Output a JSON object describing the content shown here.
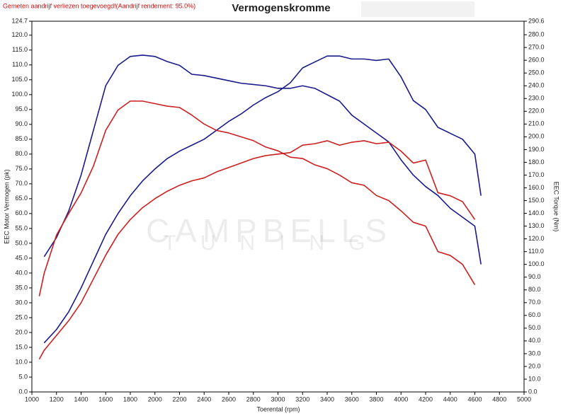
{
  "chart_data": {
    "type": "line",
    "note": "Gemeten aandrijf verliezen toegevoegd!(Aandrijf rendement: 95.0%)",
    "title": "Vermogenskromme",
    "x_label": "Toerental (rpm)",
    "y_label": "EEC Motor Vermogen (pk)",
    "y2_label": "EEC Torque (Nm)",
    "watermark": [
      "CAMPBELLS",
      "TUNING"
    ],
    "grid": false,
    "xlim": [
      1000,
      5000
    ],
    "xticks": [
      1000,
      1200,
      1400,
      1600,
      1800,
      2000,
      2200,
      2400,
      2600,
      2800,
      3000,
      3200,
      3400,
      3600,
      3800,
      4000,
      4200,
      4400,
      4600,
      4800,
      5000
    ],
    "ylim": [
      0,
      124.7
    ],
    "yticks": [
      {
        "value": 0,
        "label": "0.0"
      },
      {
        "value": 5,
        "label": "5.0"
      },
      {
        "value": 10,
        "label": "10.0"
      },
      {
        "value": 15,
        "label": "15.0"
      },
      {
        "value": 20,
        "label": "20.0"
      },
      {
        "value": 25,
        "label": "25.0"
      },
      {
        "value": 30,
        "label": "30.0"
      },
      {
        "value": 35,
        "label": "35.0"
      },
      {
        "value": 40,
        "label": "40.0"
      },
      {
        "value": 45,
        "label": "45.0"
      },
      {
        "value": 50,
        "label": "50.0"
      },
      {
        "value": 55,
        "label": "55.0"
      },
      {
        "value": 60,
        "label": "60.0"
      },
      {
        "value": 65,
        "label": "65.0"
      },
      {
        "value": 70,
        "label": "70.0"
      },
      {
        "value": 75,
        "label": "75.0"
      },
      {
        "value": 80,
        "label": "80.0"
      },
      {
        "value": 85,
        "label": "85.0"
      },
      {
        "value": 90,
        "label": "90.0"
      },
      {
        "value": 95,
        "label": "95.0"
      },
      {
        "value": 100,
        "label": "100.0"
      },
      {
        "value": 105,
        "label": "105.0"
      },
      {
        "value": 110,
        "label": "110.0"
      },
      {
        "value": 115,
        "label": "115.0"
      },
      {
        "value": 120,
        "label": "120.0"
      },
      124.7
    ],
    "y2lim": [
      0,
      290.6
    ],
    "y2ticks": [
      {
        "value": 0,
        "label": "0.0"
      },
      {
        "value": 10,
        "label": "10.0"
      },
      {
        "value": 20,
        "label": "20.0"
      },
      {
        "value": 30,
        "label": "30.0"
      },
      {
        "value": 40,
        "label": "40.0"
      },
      {
        "value": 50,
        "label": "50.0"
      },
      {
        "value": 60,
        "label": "60.0"
      },
      {
        "value": 70,
        "label": "70.0"
      },
      {
        "value": 80,
        "label": "80.0"
      },
      {
        "value": 90,
        "label": "90.0"
      },
      {
        "value": 100,
        "label": "100.0"
      },
      {
        "value": 110,
        "label": "110.0"
      },
      {
        "value": 120,
        "label": "120.0"
      },
      {
        "value": 130,
        "label": "130.0"
      },
      {
        "value": 140,
        "label": "140.0"
      },
      {
        "value": 150,
        "label": "150.0"
      },
      {
        "value": 160,
        "label": "160.0"
      },
      {
        "value": 170,
        "label": "170.0"
      },
      {
        "value": 180,
        "label": "180.0"
      },
      {
        "value": 190,
        "label": "190.0"
      },
      {
        "value": 200,
        "label": "200.0"
      },
      {
        "value": 210,
        "label": "210.0"
      },
      {
        "value": 220,
        "label": "220.0"
      },
      {
        "value": 230,
        "label": "230.0"
      },
      {
        "value": 240,
        "label": "240.0"
      },
      {
        "value": 250,
        "label": "250.0"
      },
      {
        "value": 260,
        "label": "260.0"
      },
      {
        "value": 270,
        "label": "270.0"
      },
      {
        "value": 280,
        "label": "280.0"
      },
      290.6
    ],
    "x": [
      1060,
      1100,
      1200,
      1300,
      1400,
      1500,
      1600,
      1700,
      1800,
      1900,
      2000,
      2100,
      2200,
      2300,
      2400,
      2500,
      2600,
      2700,
      2800,
      2900,
      3000,
      3100,
      3200,
      3300,
      3400,
      3500,
      3600,
      3700,
      3800,
      3900,
      4000,
      4100,
      4200,
      4300,
      4400,
      4500,
      4600,
      4650
    ],
    "series": [
      {
        "color": "#1a1a8c",
        "values": [
          null,
          16.5,
          21,
          27,
          35,
          44,
          53,
          60,
          66,
          71,
          75,
          78.5,
          81,
          83,
          85,
          88,
          91,
          93.5,
          96.5,
          99,
          101,
          104,
          109,
          111,
          113,
          113,
          112,
          112,
          111.5,
          112,
          106,
          98,
          95,
          89,
          87,
          85,
          80,
          66
        ]
      },
      {
        "color": "#1a1a8c",
        "axis": "y2",
        "values": [
          null,
          106,
          121,
          142,
          170,
          205,
          240,
          256,
          263,
          264,
          263,
          259,
          256,
          249,
          248,
          246,
          244,
          242,
          241,
          240,
          238,
          238,
          240,
          238,
          233,
          228,
          217,
          210,
          203,
          196,
          182,
          170,
          161,
          154,
          144,
          137,
          130,
          100
        ]
      },
      {
        "color": "#cc1f1f",
        "values": [
          11,
          14,
          19,
          24,
          30,
          38,
          46,
          53,
          58,
          62,
          65,
          67.5,
          69.5,
          71,
          72,
          74,
          75.5,
          77,
          78.5,
          79.5,
          80,
          80.5,
          83,
          83.5,
          84.5,
          83,
          84,
          84.5,
          83.5,
          84,
          81,
          77,
          78,
          67,
          66,
          64,
          58,
          null
        ]
      },
      {
        "color": "#cc1f1f",
        "axis": "y2",
        "values": [
          75,
          93,
          123,
          140,
          156,
          177,
          205,
          221,
          228,
          228,
          226,
          224,
          223,
          217,
          210,
          205,
          203,
          200,
          197,
          192,
          189,
          184,
          183,
          178,
          175,
          170,
          164,
          162,
          154,
          150,
          142,
          133,
          130,
          110,
          107,
          100,
          84,
          null
        ]
      }
    ]
  }
}
